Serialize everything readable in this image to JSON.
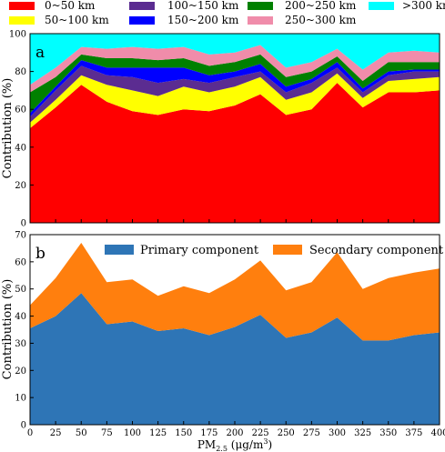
{
  "legend_a": [
    {
      "label": "0~50 km",
      "color": "#ff0000"
    },
    {
      "label": "100~150 km",
      "color": "#5b2c91"
    },
    {
      "label": "200~250 km",
      "color": "#008000"
    },
    {
      "label": ">300 km",
      "color": "#00ffff"
    },
    {
      "label": "50~100 km",
      "color": "#ffff00"
    },
    {
      "label": "150~200 km",
      "color": "#0000ff"
    },
    {
      "label": "250~300 km",
      "color": "#f08caa"
    }
  ],
  "chart_data": [
    {
      "type": "area",
      "panel_label": "a",
      "x": [
        0,
        25,
        50,
        75,
        100,
        125,
        150,
        175,
        200,
        225,
        250,
        275,
        300,
        325,
        350,
        375,
        400
      ],
      "xlim": [
        0,
        400
      ],
      "ylim": [
        0,
        100
      ],
      "ylabel": "Contribution (%)",
      "yticks": [
        0,
        20,
        40,
        60,
        80,
        100
      ],
      "stacked": true,
      "series": [
        {
          "name": "0~50 km",
          "color": "#ff0000",
          "values": [
            50,
            61,
            73,
            64,
            59,
            57,
            60,
            59,
            62,
            68,
            57,
            60,
            74,
            61,
            69,
            69,
            70
          ]
        },
        {
          "name": "50~100 km",
          "color": "#ffff00",
          "values": [
            3,
            4,
            5,
            9,
            11,
            10,
            12,
            10,
            10,
            9,
            8,
            9,
            5,
            5,
            6,
            7,
            7
          ]
        },
        {
          "name": "100~150 km",
          "color": "#5b2c91",
          "values": [
            3,
            5,
            5,
            5,
            7,
            7,
            4,
            5,
            5,
            3,
            4,
            5,
            3,
            3,
            3,
            4,
            3
          ]
        },
        {
          "name": "150~200 km",
          "color": "#0000ff",
          "values": [
            2,
            2,
            3,
            4,
            5,
            8,
            6,
            4,
            3,
            4,
            3,
            2,
            3,
            2,
            2,
            1,
            1
          ]
        },
        {
          "name": "200~250 km",
          "color": "#008000",
          "values": [
            11,
            5,
            3,
            5,
            5,
            4,
            5,
            5,
            5,
            5,
            5,
            4,
            3,
            4,
            5,
            4,
            4
          ]
        },
        {
          "name": "250~300 km",
          "color": "#f08caa",
          "values": [
            4,
            5,
            4,
            5,
            6,
            6,
            6,
            6,
            5,
            5,
            5,
            5,
            4,
            6,
            5,
            6,
            5
          ]
        },
        {
          "name": ">300 km",
          "color": "#00ffff",
          "values": [
            27,
            18,
            7,
            8,
            7,
            8,
            7,
            11,
            10,
            6,
            18,
            15,
            8,
            19,
            10,
            9,
            10
          ]
        }
      ]
    },
    {
      "type": "area",
      "panel_label": "b",
      "x": [
        0,
        25,
        50,
        75,
        100,
        125,
        150,
        175,
        200,
        225,
        250,
        275,
        300,
        325,
        350,
        375,
        400
      ],
      "xlim": [
        0,
        400
      ],
      "ylim": [
        0,
        70
      ],
      "xlabel": "PM2.5 (μg/m3)",
      "xlabel_parts": {
        "base": "PM",
        "sub": "2.5",
        "unit_pre": " (μg/m",
        "sup": "3",
        "unit_post": ")"
      },
      "ylabel": "Contribution (%)",
      "yticks": [
        0,
        10,
        20,
        30,
        40,
        50,
        60,
        70
      ],
      "xticks": [
        0,
        25,
        50,
        75,
        100,
        125,
        150,
        175,
        200,
        225,
        250,
        275,
        300,
        325,
        350,
        375,
        400
      ],
      "stacked": true,
      "series": [
        {
          "name": "Primary component",
          "color": "#2e75b6",
          "values": [
            35.5,
            40,
            48.5,
            37,
            38,
            34.5,
            35.5,
            33,
            36,
            40.5,
            32,
            34,
            39.5,
            31,
            31,
            33,
            34
          ]
        },
        {
          "name": "Secondary component",
          "color": "#ff7f0e",
          "values": [
            8.5,
            14,
            18.5,
            15.5,
            15.5,
            13,
            15.5,
            15.5,
            17.5,
            20,
            17.5,
            18.5,
            24,
            19,
            23,
            23,
            23.5
          ]
        }
      ]
    }
  ]
}
